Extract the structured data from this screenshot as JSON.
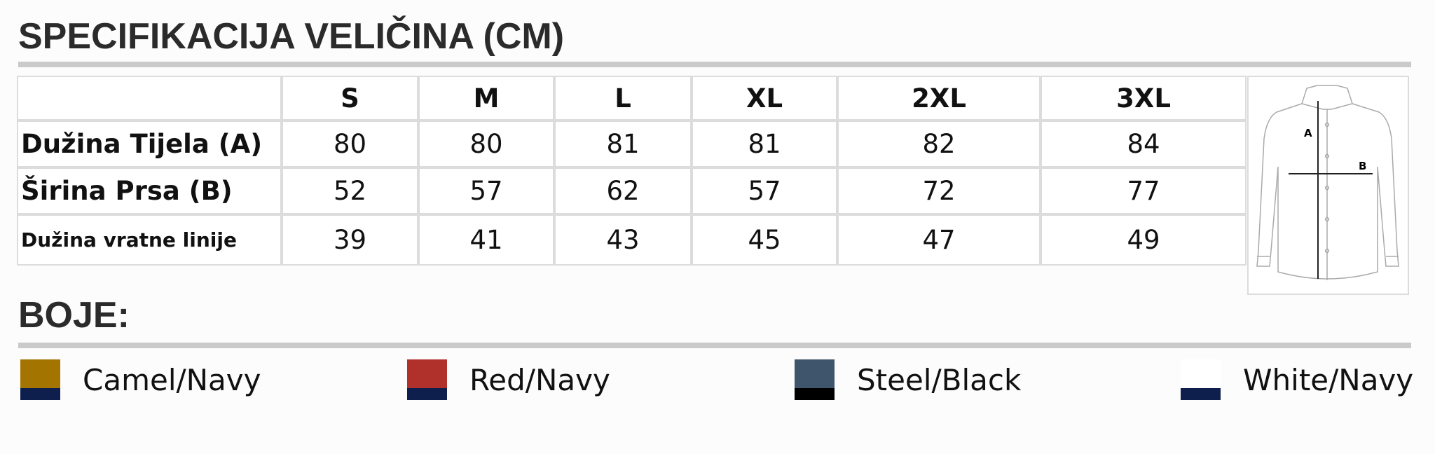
{
  "header": {
    "title": "SPECIFIKACIJA VELIČINA (CM)"
  },
  "table": {
    "columns": [
      "S",
      "M",
      "L",
      "XL",
      "2XL",
      "3XL"
    ],
    "rows": [
      {
        "label": "Dužina Tijela (A)",
        "values": [
          80,
          80,
          81,
          81,
          82,
          84
        ]
      },
      {
        "label": "Širina Prsa (B)",
        "values": [
          52,
          57,
          62,
          57,
          72,
          77
        ]
      },
      {
        "label": "Dužina vratne linije",
        "values": [
          39,
          41,
          43,
          45,
          47,
          49
        ]
      }
    ]
  },
  "diagram": {
    "labels": [
      "A",
      "B"
    ]
  },
  "colors": {
    "title": "BOJE:",
    "items": [
      {
        "name": "Camel/Navy",
        "top": "#a37400",
        "bottom": "#0f1f4d"
      },
      {
        "name": "Red/Navy",
        "top": "#b0302c",
        "bottom": "#0f1f4d"
      },
      {
        "name": "Steel/Black",
        "top": "#3f556b",
        "bottom": "#000000"
      },
      {
        "name": "White/Navy",
        "top": "#ffffff",
        "bottom": "#0f1f4d"
      }
    ]
  }
}
